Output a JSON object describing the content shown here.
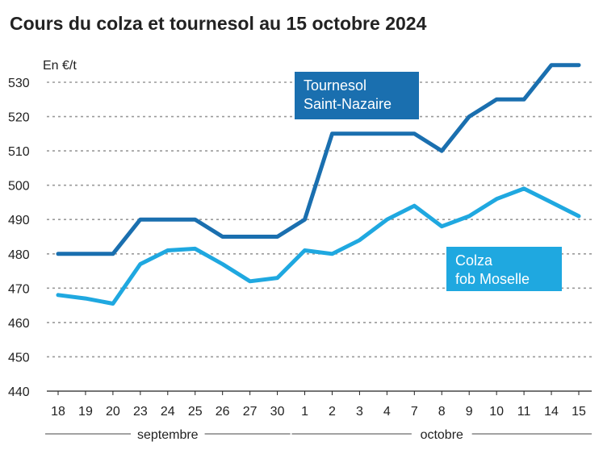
{
  "title": "Cours du colza et tournesol au 15 octobre 2024",
  "chart_data": {
    "type": "line",
    "title": "Cours du colza et tournesol au 15 octobre 2024",
    "ylabel": "En €/t",
    "ylim": [
      440,
      535
    ],
    "yticks": [
      440,
      450,
      460,
      470,
      480,
      490,
      500,
      510,
      520,
      530
    ],
    "grid": true,
    "categories": [
      "18",
      "19",
      "20",
      "23",
      "24",
      "25",
      "26",
      "27",
      "30",
      "1",
      "2",
      "3",
      "4",
      "7",
      "8",
      "9",
      "10",
      "11",
      "14",
      "15"
    ],
    "months": [
      {
        "name": "septembre",
        "from": 0,
        "to": 8
      },
      {
        "name": "octobre",
        "from": 9,
        "to": 19
      }
    ],
    "series": [
      {
        "name": "Tournesol Saint-Nazaire",
        "label_lines": [
          "Tournesol",
          "Saint-Nazaire"
        ],
        "color": "#1a6faf",
        "values": [
          480,
          480,
          480,
          490,
          490,
          490,
          485,
          485,
          485,
          490,
          515,
          515,
          515,
          515,
          510,
          520,
          525,
          525,
          535,
          535
        ]
      },
      {
        "name": "Colza fob Moselle",
        "label_lines": [
          "Colza",
          "fob Moselle"
        ],
        "color": "#1fa8e0",
        "values": [
          468,
          467,
          465.5,
          477,
          481,
          481.5,
          477,
          472,
          473,
          481,
          480,
          484,
          490,
          494,
          488,
          491,
          496,
          499,
          495,
          491
        ]
      }
    ]
  }
}
